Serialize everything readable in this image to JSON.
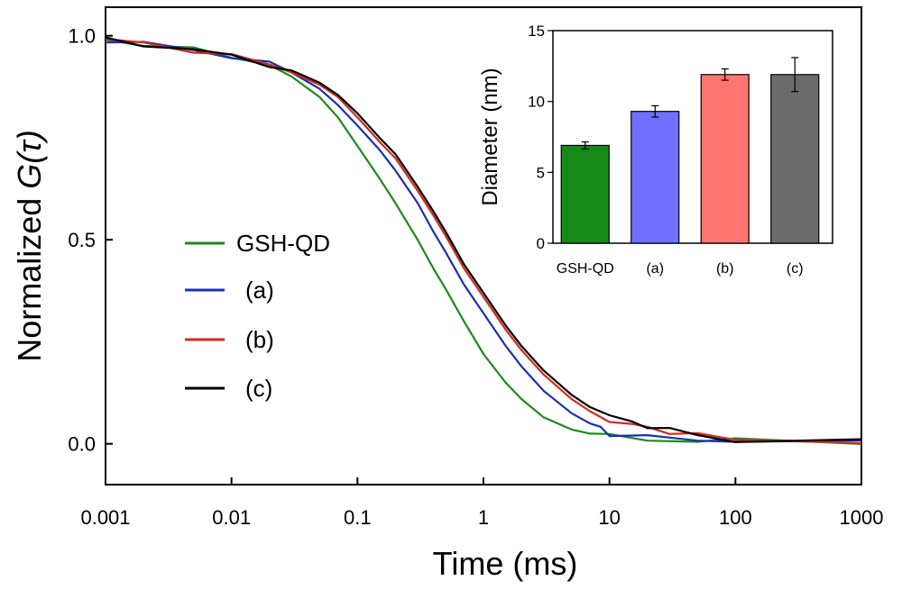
{
  "chart_data": [
    {
      "type": "line",
      "xscale": "log",
      "xlabel": "Time (ms)",
      "ylabel_prefix": "Normalized ",
      "ylabel_symbol": "G(τ)",
      "xlim": [
        0.001,
        1000
      ],
      "ylim": [
        -0.1,
        1.07
      ],
      "xticks": [
        0.001,
        0.01,
        0.1,
        1,
        10,
        100,
        1000
      ],
      "xtick_labels": [
        "0.001",
        "0.01",
        "0.1",
        "1",
        "10",
        "100",
        "1000"
      ],
      "yticks": [
        0.0,
        0.5,
        1.0
      ],
      "ytick_labels": [
        "0.0",
        "0.5",
        "1.0"
      ],
      "legend_position": "center-left",
      "series": [
        {
          "name": "GSH-QD",
          "color": "#1a8c1a",
          "x": [
            0.001,
            0.002,
            0.005,
            0.01,
            0.02,
            0.03,
            0.05,
            0.07,
            0.1,
            0.15,
            0.2,
            0.3,
            0.4,
            0.5,
            0.7,
            1,
            1.5,
            2,
            3,
            5,
            7,
            10,
            20,
            50,
            100,
            1000
          ],
          "y": [
            0.99,
            0.98,
            0.965,
            0.95,
            0.93,
            0.9,
            0.85,
            0.8,
            0.73,
            0.65,
            0.59,
            0.5,
            0.43,
            0.38,
            0.3,
            0.22,
            0.15,
            0.11,
            0.065,
            0.035,
            0.025,
            0.018,
            0.01,
            0.008,
            0.007,
            0.005
          ]
        },
        {
          "name": "(a)",
          "color": "#1a2eb8",
          "x": [
            0.001,
            0.002,
            0.005,
            0.01,
            0.02,
            0.03,
            0.05,
            0.07,
            0.1,
            0.15,
            0.2,
            0.3,
            0.4,
            0.5,
            0.7,
            1,
            1.5,
            2,
            3,
            5,
            7,
            8.5,
            10,
            20,
            50,
            100,
            1000
          ],
          "y": [
            0.99,
            0.98,
            0.965,
            0.95,
            0.93,
            0.91,
            0.87,
            0.83,
            0.78,
            0.72,
            0.67,
            0.59,
            0.52,
            0.47,
            0.39,
            0.32,
            0.24,
            0.19,
            0.13,
            0.075,
            0.05,
            0.04,
            0.025,
            0.015,
            0.01,
            0.008,
            0.002
          ]
        },
        {
          "name": "(b)",
          "color": "#d42a1f",
          "x": [
            0.001,
            0.002,
            0.005,
            0.01,
            0.02,
            0.03,
            0.05,
            0.07,
            0.1,
            0.15,
            0.2,
            0.3,
            0.4,
            0.5,
            0.7,
            1,
            1.5,
            2,
            3,
            5,
            7,
            10,
            15,
            20,
            30,
            50,
            100,
            1000
          ],
          "y": [
            0.99,
            0.98,
            0.965,
            0.95,
            0.93,
            0.91,
            0.88,
            0.85,
            0.8,
            0.74,
            0.7,
            0.62,
            0.56,
            0.51,
            0.43,
            0.36,
            0.28,
            0.23,
            0.17,
            0.11,
            0.08,
            0.06,
            0.045,
            0.04,
            0.03,
            0.02,
            0.012,
            0.005
          ]
        },
        {
          "name": "(c)",
          "color": "#000000",
          "x": [
            0.001,
            0.002,
            0.005,
            0.01,
            0.02,
            0.03,
            0.05,
            0.07,
            0.1,
            0.15,
            0.2,
            0.3,
            0.4,
            0.5,
            0.7,
            1,
            1.5,
            2,
            3,
            5,
            7,
            10,
            15,
            20,
            30,
            50,
            100,
            1000
          ],
          "y": [
            0.99,
            0.98,
            0.965,
            0.95,
            0.93,
            0.915,
            0.885,
            0.855,
            0.81,
            0.75,
            0.71,
            0.63,
            0.57,
            0.52,
            0.44,
            0.37,
            0.29,
            0.24,
            0.18,
            0.12,
            0.09,
            0.07,
            0.05,
            0.045,
            0.035,
            0.02,
            0.01,
            0.005
          ]
        }
      ]
    },
    {
      "type": "bar",
      "ylabel": "Diameter (nm)",
      "ylim": [
        0,
        15
      ],
      "yticks": [
        0,
        5,
        10,
        15
      ],
      "ytick_labels": [
        "0",
        "5",
        "10",
        "15"
      ],
      "categories": [
        "GSH-QD",
        "(a)",
        "(b)",
        "(c)"
      ],
      "values": [
        6.9,
        9.3,
        11.9,
        11.9
      ],
      "errors": [
        0.25,
        0.4,
        0.4,
        1.2
      ],
      "colors": [
        "#168a16",
        "#6f70ff",
        "#ff7570",
        "#6b6b6b"
      ]
    }
  ]
}
